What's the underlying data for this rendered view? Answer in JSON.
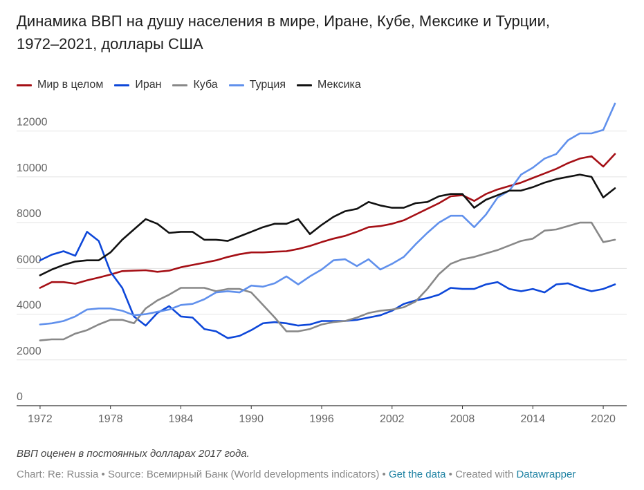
{
  "header": {
    "title_line1": "Динамика ВВП на душу населения в мире, Иране, Кубе, Мексике и Турции,",
    "title_line2": "1972–2021, доллары США"
  },
  "notes": "ВВП оценен в постоянных долларах 2017 года.",
  "footer": {
    "chart_by": "Chart: Re: Russia",
    "sep1": " • ",
    "source": "Source: Всемирный Банк (World developments indicators)",
    "sep2": " • ",
    "get_data": "Get the data",
    "sep3": " • ",
    "created_with": "Created with ",
    "datawrapper": "Datawrapper"
  },
  "chart_data": {
    "type": "line",
    "xlim": [
      1970,
      2022
    ],
    "ylim": [
      0,
      13500
    ],
    "grid": true,
    "legend_position": "top-left",
    "xticks": [
      1972,
      1978,
      1984,
      1990,
      1996,
      2002,
      2008,
      2014,
      2020
    ],
    "yticks": [
      0,
      2000,
      4000,
      6000,
      8000,
      10000,
      12000
    ],
    "x": [
      1972,
      1973,
      1974,
      1975,
      1976,
      1977,
      1978,
      1979,
      1980,
      1981,
      1982,
      1983,
      1984,
      1985,
      1986,
      1987,
      1988,
      1989,
      1990,
      1991,
      1992,
      1993,
      1994,
      1995,
      1996,
      1997,
      1998,
      1999,
      2000,
      2001,
      2002,
      2003,
      2004,
      2005,
      2006,
      2007,
      2008,
      2009,
      2010,
      2011,
      2012,
      2013,
      2014,
      2015,
      2016,
      2017,
      2018,
      2019,
      2020,
      2021
    ],
    "series": [
      {
        "name": "Мир в целом",
        "color": "#a50f15",
        "values": [
          5150,
          5400,
          5400,
          5330,
          5480,
          5600,
          5730,
          5880,
          5900,
          5920,
          5850,
          5900,
          6050,
          6150,
          6250,
          6350,
          6500,
          6620,
          6700,
          6700,
          6730,
          6750,
          6850,
          6980,
          7150,
          7300,
          7420,
          7600,
          7800,
          7850,
          7950,
          8100,
          8350,
          8600,
          8850,
          9150,
          9200,
          8950,
          9250,
          9450,
          9600,
          9750,
          9950,
          10150,
          10350,
          10600,
          10800,
          10900,
          10450,
          11000
        ]
      },
      {
        "name": "Иран",
        "color": "#0d47d9",
        "values": [
          6350,
          6600,
          6750,
          6550,
          7600,
          7200,
          5850,
          5150,
          3900,
          3500,
          4050,
          4350,
          3900,
          3850,
          3350,
          3250,
          2950,
          3050,
          3300,
          3600,
          3650,
          3600,
          3500,
          3550,
          3700,
          3700,
          3700,
          3750,
          3850,
          3950,
          4150,
          4450,
          4600,
          4700,
          4850,
          5150,
          5100,
          5100,
          5300,
          5400,
          5100,
          5000,
          5100,
          4950,
          5300,
          5350,
          5150,
          5000,
          5100,
          5300
        ]
      },
      {
        "name": "Куба",
        "color": "#888888",
        "values": [
          2850,
          2900,
          2900,
          3150,
          3300,
          3550,
          3750,
          3750,
          3600,
          4250,
          4600,
          4850,
          5150,
          5150,
          5150,
          5000,
          5100,
          5100,
          4950,
          4400,
          3850,
          3250,
          3250,
          3350,
          3550,
          3650,
          3700,
          3850,
          4050,
          4150,
          4200,
          4300,
          4550,
          5100,
          5750,
          6200,
          6400,
          6500,
          6650,
          6800,
          7000,
          7200,
          7300,
          7650,
          7700,
          7850,
          8000,
          8000,
          7150,
          7250
        ]
      },
      {
        "name": "Турция",
        "color": "#6090ec",
        "values": [
          3550,
          3600,
          3700,
          3900,
          4200,
          4250,
          4250,
          4150,
          3950,
          4000,
          4100,
          4200,
          4400,
          4450,
          4650,
          4950,
          5000,
          4950,
          5250,
          5200,
          5350,
          5650,
          5300,
          5650,
          5950,
          6350,
          6400,
          6100,
          6400,
          5950,
          6200,
          6500,
          7050,
          7550,
          8000,
          8300,
          8300,
          7800,
          8350,
          9100,
          9400,
          10100,
          10400,
          10800,
          11000,
          11600,
          11900,
          11900,
          12050,
          13200
        ]
      },
      {
        "name": "Мексика",
        "color": "#111111",
        "values": [
          5700,
          5950,
          6150,
          6300,
          6350,
          6350,
          6700,
          7250,
          7700,
          8150,
          7950,
          7550,
          7600,
          7600,
          7250,
          7250,
          7200,
          7400,
          7600,
          7800,
          7950,
          7950,
          8150,
          7500,
          7900,
          8250,
          8500,
          8600,
          8900,
          8750,
          8650,
          8650,
          8850,
          8900,
          9150,
          9250,
          9250,
          8650,
          9000,
          9200,
          9400,
          9400,
          9550,
          9750,
          9900,
          10000,
          10100,
          10000,
          9100,
          9500
        ]
      }
    ]
  }
}
